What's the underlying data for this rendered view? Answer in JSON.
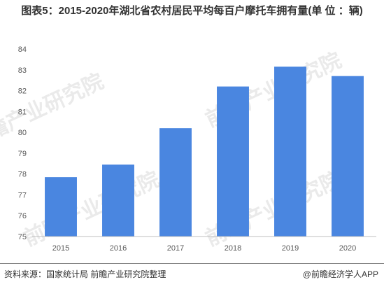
{
  "title": "图表5：2015-2020年湖北省农村居民平均每百户摩托车拥有量(单 位 ：辆)",
  "source": "资料来源：国家统计局 前瞻产业研究院整理",
  "credit": "@前瞻经济学人APP",
  "watermark": "前瞻产业研究院",
  "colors": {
    "bar": "#4a86e0",
    "grid": "#d9d9d9",
    "axis": "#bfbfbf"
  },
  "chart_data": {
    "type": "bar",
    "categories": [
      "2015",
      "2016",
      "2017",
      "2018",
      "2019",
      "2020"
    ],
    "values": [
      77.85,
      78.45,
      80.2,
      82.2,
      83.15,
      82.7
    ],
    "ylim": [
      75,
      84
    ],
    "yticks": [
      75,
      76,
      77,
      78,
      79,
      80,
      81,
      82,
      83,
      84
    ],
    "grid": false,
    "legend": "none"
  }
}
